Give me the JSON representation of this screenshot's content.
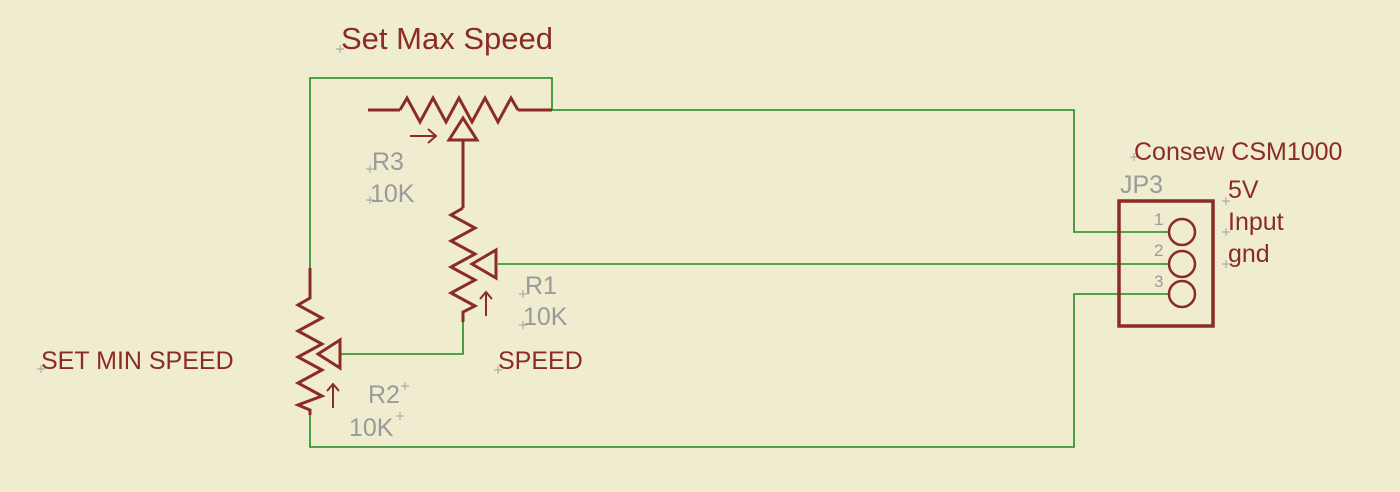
{
  "labels": {
    "set_max_speed": "Set Max Speed",
    "set_min_speed": "SET MIN SPEED",
    "speed": "SPEED",
    "consew": "Consew CSM1000"
  },
  "parts": {
    "r3": {
      "name": "R3",
      "value": "10K"
    },
    "r1": {
      "name": "R1",
      "value": "10K"
    },
    "r2": {
      "name": "R2",
      "value": "10K"
    },
    "jp3": {
      "name": "JP3",
      "pins": [
        "1",
        "2",
        "3"
      ],
      "pin_labels": [
        "5V",
        "Input",
        "gnd"
      ]
    }
  },
  "colors": {
    "background": "#f0ecd0",
    "wire": "#1e8a1e",
    "part": "#8b2c24",
    "part_name": "#9a9a9a"
  }
}
